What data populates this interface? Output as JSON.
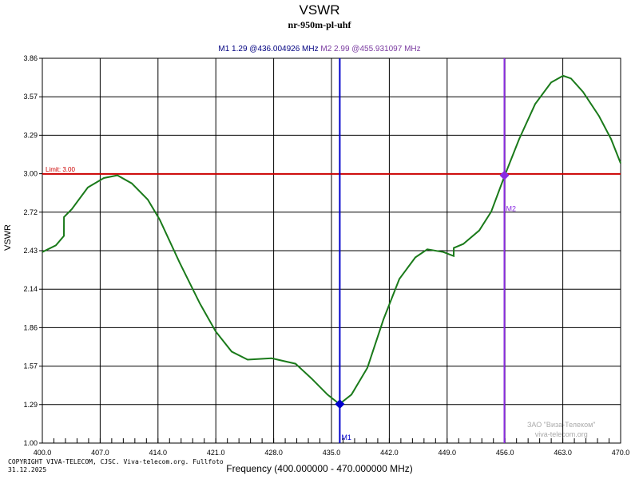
{
  "chart_data": {
    "type": "line",
    "title": "VSWR",
    "subtitle": "nr-950m-pl-uhf",
    "xlabel": "Frequency (400.000000 - 470.000000 MHz)",
    "ylabel": "VSWR",
    "xlim": [
      400,
      470
    ],
    "ylim": [
      1.0,
      3.86
    ],
    "grid": true,
    "x_ticks": [
      "400.0",
      "407.0",
      "414.0",
      "421.0",
      "428.0",
      "435.0",
      "442.0",
      "449.0",
      "456.0",
      "463.0",
      "470.0"
    ],
    "y_ticks": [
      "1.00",
      "1.29",
      "1.57",
      "1.86",
      "2.14",
      "2.43",
      "2.72",
      "3.00",
      "3.29",
      "3.57",
      "3.86"
    ],
    "limit": {
      "value": 3.0,
      "label": "Limit: 3.00",
      "color": "#cc0000"
    },
    "series": [
      {
        "color": "#1a7a1a",
        "x": [
          400,
          401.64,
          402.61,
          402.62,
          403.58,
          405.51,
          407.44,
          409.09,
          410.83,
          412.76,
          414.21,
          416.63,
          419.05,
          420.98,
          422.91,
          424.85,
          427.75,
          430.65,
          432.58,
          434.52,
          435.97,
          437.42,
          439.35,
          441.29,
          443.22,
          445.15,
          446.6,
          448.54,
          449.79,
          449.8,
          450.95,
          452.89,
          454.34,
          455.98,
          457.72,
          459.65,
          461.59,
          463.04,
          464.0,
          465.45,
          467.39,
          468.84,
          470
        ],
        "y": [
          2.42,
          2.47,
          2.54,
          2.68,
          2.74,
          2.9,
          2.97,
          2.99,
          2.93,
          2.81,
          2.66,
          2.34,
          2.04,
          1.83,
          1.68,
          1.62,
          1.63,
          1.59,
          1.48,
          1.36,
          1.29,
          1.36,
          1.56,
          1.92,
          2.22,
          2.38,
          2.44,
          2.42,
          2.39,
          2.45,
          2.48,
          2.58,
          2.72,
          2.99,
          3.26,
          3.52,
          3.68,
          3.73,
          3.71,
          3.61,
          3.43,
          3.26,
          3.08
        ]
      }
    ],
    "markers": [
      {
        "name": "M1",
        "x": 436.004926,
        "y": 1.29,
        "color": "#0000cc",
        "readout": "M1  1.29 @436.004926 MHz"
      },
      {
        "name": "M2",
        "x": 455.931097,
        "y": 2.99,
        "color": "#8a2be2",
        "readout": "M2  2.99 @455.931097 MHz"
      }
    ]
  },
  "footer": {
    "copyright": "COPYRIGHT VIVA-TELECOM, CJSC. Viva-telecom.org. Fullfoto",
    "date": "31.12.2025"
  },
  "watermark": {
    "line1": "ЗАО \"Виза-Телеком\"",
    "line2": "viva-telecom.org"
  }
}
